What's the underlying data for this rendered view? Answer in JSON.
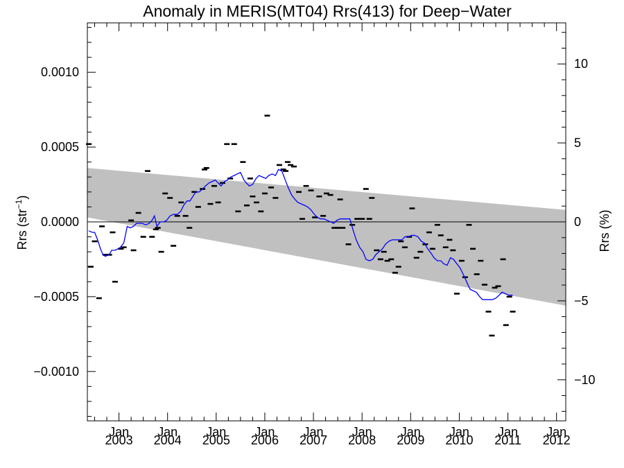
{
  "chart_data": {
    "type": "scatter",
    "title": "Anomaly in MERIS(MT04) Rrs(413) for Deep−Water",
    "ylabel_left": "Rrs (str",
    "ylabel_left_sup": "−1",
    "ylabel_left_close": ")",
    "ylabel_right": "Rrs (%)",
    "x_ticks": [
      {
        "month": "Jan",
        "year": "2003"
      },
      {
        "month": "Jan",
        "year": "2004"
      },
      {
        "month": "Jan",
        "year": "2005"
      },
      {
        "month": "Jan",
        "year": "2006"
      },
      {
        "month": "Jan",
        "year": "2007"
      },
      {
        "month": "Jan",
        "year": "2008"
      },
      {
        "month": "Jan",
        "year": "2009"
      },
      {
        "month": "Jan",
        "year": "2010"
      },
      {
        "month": "Jan",
        "year": "2011"
      },
      {
        "month": "Jan",
        "year": "2012"
      }
    ],
    "xlim": [
      2002.35,
      2012.19
    ],
    "ylim": [
      -0.00133,
      0.00133
    ],
    "y_ticks_left": [
      "0.0010",
      "0.0005",
      "0.0000",
      "−0.0005",
      "−0.0010"
    ],
    "y_ticks_left_values": [
      0.001,
      0.0005,
      0.0,
      -0.0005,
      -0.001
    ],
    "y_ticks_right": [
      "10",
      "5",
      "0",
      "−5",
      "−10"
    ],
    "y_ticks_right_values": [
      10,
      5,
      0,
      -5,
      -10
    ],
    "right_ylim": [
      -12.6,
      12.6
    ],
    "zero_line": true,
    "grid": false,
    "legend": "none",
    "band": {
      "upper": [
        [
          2002.35,
          0.00036
        ],
        [
          2012.19,
          8e-05
        ]
      ],
      "lower": [
        [
          2002.35,
          3e-05
        ],
        [
          2012.19,
          -0.00056
        ]
      ],
      "color": "#c0c0c0"
    },
    "points": [
      [
        2002.38,
        0.00052
      ],
      [
        2002.42,
        -0.0003
      ],
      [
        2002.5,
        -0.00013
      ],
      [
        2002.59,
        -0.00051
      ],
      [
        2002.65,
        -3e-05
      ],
      [
        2002.72,
        -0.00022
      ],
      [
        2002.8,
        -0.00022
      ],
      [
        2002.87,
        -7e-05
      ],
      [
        2002.92,
        -0.0004
      ],
      [
        2003.04,
        -0.00018
      ],
      [
        2003.1,
        -0.00017
      ],
      [
        2003.25,
        1e-05
      ],
      [
        2003.3,
        -0.00019
      ],
      [
        2003.4,
        6e-05
      ],
      [
        2003.5,
        -0.0001
      ],
      [
        2003.59,
        0.00034
      ],
      [
        2003.68,
        -0.0001
      ],
      [
        2003.76,
        -5e-05
      ],
      [
        2003.8,
        -4e-05
      ],
      [
        2003.87,
        -0.0002
      ],
      [
        2003.95,
        0.00019
      ],
      [
        2004.05,
        0.00016
      ],
      [
        2004.12,
        -0.00016
      ],
      [
        2004.2,
        4e-05
      ],
      [
        2004.28,
        0.00013
      ],
      [
        2004.37,
        4e-05
      ],
      [
        2004.45,
        -4e-05
      ],
      [
        2004.55,
        0.0002
      ],
      [
        2004.63,
        0.0001
      ],
      [
        2004.72,
        0.00022
      ],
      [
        2004.76,
        0.00035
      ],
      [
        2004.8,
        0.00036
      ],
      [
        2004.88,
        0.00012
      ],
      [
        2004.96,
        0.00024
      ],
      [
        2005.04,
        0.00013
      ],
      [
        2005.13,
        0.00026
      ],
      [
        2005.22,
        0.00052
      ],
      [
        2005.29,
        0.00029
      ],
      [
        2005.37,
        0.00052
      ],
      [
        2005.45,
        7e-05
      ],
      [
        2005.55,
        0.0004
      ],
      [
        2005.63,
        0.00011
      ],
      [
        2005.7,
        0.00029
      ],
      [
        2005.75,
        0.00017
      ],
      [
        2005.83,
        0.00013
      ],
      [
        2005.92,
        7e-05
      ],
      [
        2006.0,
        0.00019
      ],
      [
        2006.05,
        0.00071
      ],
      [
        2006.13,
        0.00023
      ],
      [
        2006.22,
        0.00016
      ],
      [
        2006.3,
        0.00038
      ],
      [
        2006.38,
        0.00035
      ],
      [
        2006.43,
        0.00034
      ],
      [
        2006.47,
        0.0004
      ],
      [
        2006.53,
        0.00038
      ],
      [
        2006.6,
        0.00037
      ],
      [
        2006.7,
        0.0002
      ],
      [
        2006.77,
        2e-05
      ],
      [
        2006.85,
        0.00024
      ],
      [
        2006.95,
        0.00021
      ],
      [
        2007.03,
        3e-05
      ],
      [
        2007.12,
        0.00017
      ],
      [
        2007.2,
        4e-05
      ],
      [
        2007.27,
        0.00019
      ],
      [
        2007.35,
        0.00018
      ],
      [
        2007.43,
        -4e-05
      ],
      [
        2007.5,
        -4e-05
      ],
      [
        2007.55,
        0.00015
      ],
      [
        2007.6,
        -4e-05
      ],
      [
        2007.72,
        -0.00015
      ],
      [
        2007.8,
        -2e-05
      ],
      [
        2007.9,
        2e-05
      ],
      [
        2008.0,
        2e-05
      ],
      [
        2008.08,
        0.00022
      ],
      [
        2008.15,
        2e-05
      ],
      [
        2008.2,
        0.00016
      ],
      [
        2008.3,
        -0.00019
      ],
      [
        2008.38,
        -0.00025
      ],
      [
        2008.45,
        -0.0002
      ],
      [
        2008.52,
        -0.00026
      ],
      [
        2008.6,
        -0.00025
      ],
      [
        2008.68,
        -0.00034
      ],
      [
        2008.75,
        -0.0003
      ],
      [
        2008.8,
        -0.00013
      ],
      [
        2008.88,
        -0.00017
      ],
      [
        2008.97,
        -0.0001
      ],
      [
        2009.03,
        9e-05
      ],
      [
        2009.12,
        -0.00024
      ],
      [
        2009.2,
        -0.0002
      ],
      [
        2009.3,
        -0.00015
      ],
      [
        2009.38,
        -7e-05
      ],
      [
        2009.45,
        -0.00018
      ],
      [
        2009.55,
        -2e-05
      ],
      [
        2009.62,
        -9e-05
      ],
      [
        2009.72,
        -0.00017
      ],
      [
        2009.8,
        -0.00012
      ],
      [
        2009.87,
        -0.00019
      ],
      [
        2009.95,
        -0.00048
      ],
      [
        2010.05,
        -0.00026
      ],
      [
        2010.12,
        -0.00037
      ],
      [
        2010.2,
        -2e-05
      ],
      [
        2010.28,
        -0.00018
      ],
      [
        2010.36,
        -0.00035
      ],
      [
        2010.44,
        -0.00026
      ],
      [
        2010.52,
        -0.00042
      ],
      [
        2010.6,
        -0.0006
      ],
      [
        2010.67,
        -0.00076
      ],
      [
        2010.73,
        -0.00044
      ],
      [
        2010.8,
        -0.00043
      ],
      [
        2010.9,
        -0.00025
      ],
      [
        2010.96,
        -0.00069
      ],
      [
        2011.03,
        -0.0005
      ],
      [
        2011.1,
        -0.0006
      ]
    ],
    "line_color": "#0000ff",
    "line": [
      [
        2002.38,
        -6e-05
      ],
      [
        2002.45,
        -7e-05
      ],
      [
        2002.5,
        -7e-05
      ],
      [
        2002.56,
        -0.00012
      ],
      [
        2002.62,
        -0.00018
      ],
      [
        2002.67,
        -0.00022
      ],
      [
        2002.72,
        -0.00023
      ],
      [
        2002.8,
        -0.00022
      ],
      [
        2002.85,
        -0.00019
      ],
      [
        2002.92,
        -0.00019
      ],
      [
        2002.98,
        -0.00018
      ],
      [
        2003.03,
        -0.00017
      ],
      [
        2003.1,
        -0.00014
      ],
      [
        2003.17,
        -3e-05
      ],
      [
        2003.23,
        -4e-05
      ],
      [
        2003.3,
        -3e-05
      ],
      [
        2003.36,
        -1e-05
      ],
      [
        2003.42,
        -1e-05
      ],
      [
        2003.48,
        -1e-05
      ],
      [
        2003.55,
        -2e-05
      ],
      [
        2003.62,
        -1e-05
      ],
      [
        2003.68,
        1e-05
      ],
      [
        2003.73,
        4e-05
      ],
      [
        2003.78,
        -3e-05
      ],
      [
        2003.85,
        0.0
      ],
      [
        2003.92,
        0.0
      ],
      [
        2003.98,
        1e-05
      ],
      [
        2004.05,
        4e-05
      ],
      [
        2004.12,
        5e-05
      ],
      [
        2004.2,
        5e-05
      ],
      [
        2004.27,
        7e-05
      ],
      [
        2004.33,
        0.00011
      ],
      [
        2004.4,
        0.00014
      ],
      [
        2004.46,
        0.00014
      ],
      [
        2004.52,
        0.00017
      ],
      [
        2004.58,
        0.0002
      ],
      [
        2004.65,
        0.0002
      ],
      [
        2004.72,
        0.00022
      ],
      [
        2004.78,
        0.00024
      ],
      [
        2004.85,
        0.00026
      ],
      [
        2004.92,
        0.00027
      ],
      [
        2004.98,
        0.00028
      ],
      [
        2005.04,
        0.00026
      ],
      [
        2005.1,
        0.00024
      ],
      [
        2005.17,
        0.00027
      ],
      [
        2005.23,
        0.00028
      ],
      [
        2005.3,
        0.0003
      ],
      [
        2005.37,
        0.00031
      ],
      [
        2005.43,
        0.00032
      ],
      [
        2005.5,
        0.00033
      ],
      [
        2005.57,
        0.00028
      ],
      [
        2005.62,
        0.00026
      ],
      [
        2005.68,
        0.00024
      ],
      [
        2005.75,
        0.00025
      ],
      [
        2005.82,
        0.00029
      ],
      [
        2005.88,
        0.00031
      ],
      [
        2005.95,
        0.0003
      ],
      [
        2006.02,
        0.00029
      ],
      [
        2006.08,
        0.00031
      ],
      [
        2006.15,
        0.00032
      ],
      [
        2006.22,
        0.00031
      ],
      [
        2006.28,
        0.00035
      ],
      [
        2006.35,
        0.00034
      ],
      [
        2006.42,
        0.00028
      ],
      [
        2006.48,
        0.00023
      ],
      [
        2006.55,
        0.00018
      ],
      [
        2006.62,
        0.00015
      ],
      [
        2006.68,
        0.00013
      ],
      [
        2006.75,
        0.00012
      ],
      [
        2006.82,
        0.00011
      ],
      [
        2006.88,
        0.0001
      ],
      [
        2006.95,
        8e-05
      ],
      [
        2007.02,
        5e-05
      ],
      [
        2007.08,
        3e-05
      ],
      [
        2007.15,
        2e-05
      ],
      [
        2007.22,
        2e-05
      ],
      [
        2007.28,
        1e-05
      ],
      [
        2007.35,
        0.0
      ],
      [
        2007.42,
        -1e-05
      ],
      [
        2007.48,
        1e-05
      ],
      [
        2007.55,
        2e-05
      ],
      [
        2007.62,
        2e-05
      ],
      [
        2007.68,
        2e-05
      ],
      [
        2007.75,
        2e-05
      ],
      [
        2007.82,
        -6e-05
      ],
      [
        2007.88,
        -0.00012
      ],
      [
        2007.95,
        -0.00017
      ],
      [
        2008.02,
        -0.0002
      ],
      [
        2008.08,
        -0.00025
      ],
      [
        2008.15,
        -0.00026
      ],
      [
        2008.22,
        -0.00025
      ],
      [
        2008.28,
        -0.00022
      ],
      [
        2008.35,
        -0.0002
      ],
      [
        2008.42,
        -0.00018
      ],
      [
        2008.48,
        -0.00015
      ],
      [
        2008.55,
        -0.00013
      ],
      [
        2008.62,
        -0.00012
      ],
      [
        2008.68,
        -0.00012
      ],
      [
        2008.75,
        -0.00012
      ],
      [
        2008.82,
        -0.00012
      ],
      [
        2008.88,
        -0.0001
      ],
      [
        2008.95,
        -0.0001
      ],
      [
        2009.02,
        -9e-05
      ],
      [
        2009.08,
        -9e-05
      ],
      [
        2009.15,
        -0.0001
      ],
      [
        2009.22,
        -0.00013
      ],
      [
        2009.28,
        -0.00014
      ],
      [
        2009.35,
        -0.00018
      ],
      [
        2009.42,
        -0.00021
      ],
      [
        2009.48,
        -0.00024
      ],
      [
        2009.55,
        -0.00026
      ],
      [
        2009.62,
        -0.00026
      ],
      [
        2009.68,
        -0.00028
      ],
      [
        2009.75,
        -0.00029
      ],
      [
        2009.82,
        -0.00024
      ],
      [
        2009.88,
        -0.00025
      ],
      [
        2009.95,
        -0.00028
      ],
      [
        2010.02,
        -0.00031
      ],
      [
        2010.08,
        -0.00035
      ],
      [
        2010.15,
        -0.0004
      ],
      [
        2010.22,
        -0.00045
      ],
      [
        2010.28,
        -0.00046
      ],
      [
        2010.35,
        -0.00047
      ],
      [
        2010.42,
        -0.0005
      ],
      [
        2010.48,
        -0.00052
      ],
      [
        2010.55,
        -0.00052
      ],
      [
        2010.62,
        -0.00052
      ],
      [
        2010.68,
        -0.00052
      ],
      [
        2010.75,
        -0.00051
      ],
      [
        2010.82,
        -0.00049
      ],
      [
        2010.88,
        -0.00047
      ],
      [
        2010.95,
        -0.00048
      ],
      [
        2011.02,
        -0.00049
      ],
      [
        2011.1,
        -0.00049
      ]
    ]
  }
}
